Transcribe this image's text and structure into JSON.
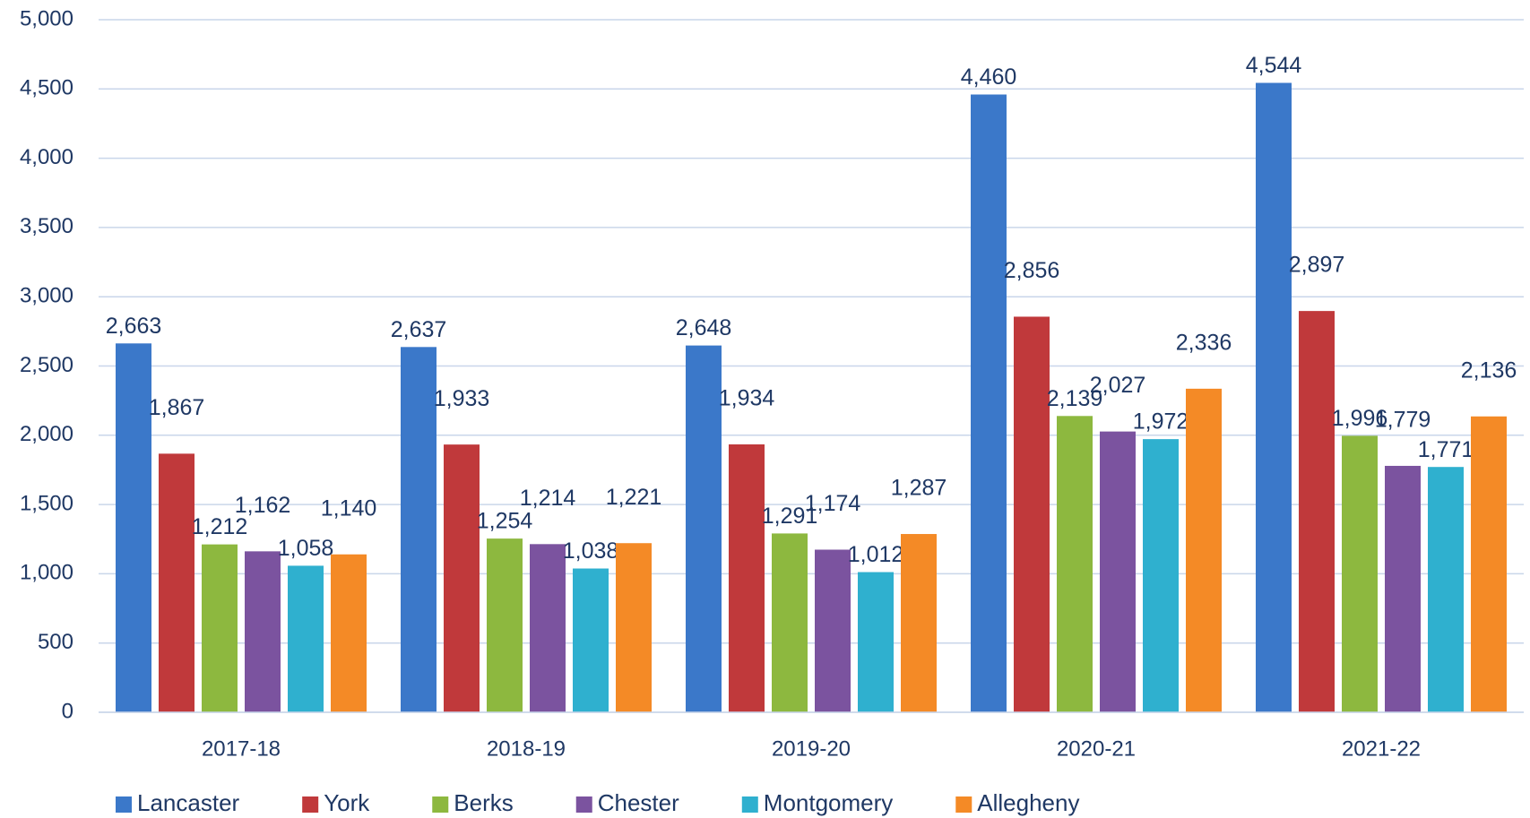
{
  "chart_data": {
    "type": "bar",
    "categories": [
      "2017-18",
      "2018-19",
      "2019-20",
      "2020-21",
      "2021-22"
    ],
    "series": [
      {
        "name": "Lancaster",
        "color": "#3b78c9",
        "values": [
          2663,
          2637,
          2648,
          4460,
          4544
        ],
        "value_labels": [
          "2,663",
          "2,637",
          "2,648",
          "4,460",
          "4,544"
        ]
      },
      {
        "name": "York",
        "color": "#c0393b",
        "values": [
          1867,
          1933,
          1934,
          2856,
          2897
        ],
        "value_labels": [
          "1,867",
          "1,933",
          "1,934",
          "2,856",
          "2,897"
        ]
      },
      {
        "name": "Berks",
        "color": "#8db83f",
        "values": [
          1212,
          1254,
          1291,
          2139,
          1996
        ],
        "value_labels": [
          "1,212",
          "1,254",
          "1,291",
          "2,139",
          "1,996"
        ]
      },
      {
        "name": "Chester",
        "color": "#7b539f",
        "values": [
          1162,
          1214,
          1174,
          2027,
          1779
        ],
        "value_labels": [
          "1,162",
          "1,214",
          "1,174",
          "2,027",
          "1,779"
        ]
      },
      {
        "name": "Montgomery",
        "color": "#2fb0cf",
        "values": [
          1058,
          1038,
          1012,
          1972,
          1771
        ],
        "value_labels": [
          "1,058",
          "1,038",
          "1,012",
          "1,972",
          "1,771"
        ]
      },
      {
        "name": "Allegheny",
        "color": "#f48a26",
        "values": [
          1140,
          1221,
          1287,
          2336,
          2136
        ],
        "value_labels": [
          "1,140",
          "1,221",
          "1,287",
          "2,336",
          "2,136"
        ]
      }
    ],
    "ylim": [
      0,
      5000
    ],
    "yticks": [
      0,
      500,
      {
        "value": 1000,
        "label": "1,000"
      },
      {
        "value": 1500,
        "label": "1,500"
      },
      {
        "value": 2000,
        "label": "2,000"
      },
      {
        "value": 2500,
        "label": "2,500"
      },
      {
        "value": 3000,
        "label": "3,000"
      },
      {
        "value": 3500,
        "label": "3,500"
      },
      {
        "value": 4000,
        "label": "4,000"
      },
      {
        "value": 4500,
        "label": "4,500"
      },
      {
        "value": 5000,
        "label": "5,000"
      }
    ],
    "grid": true,
    "legend": "bottom"
  }
}
